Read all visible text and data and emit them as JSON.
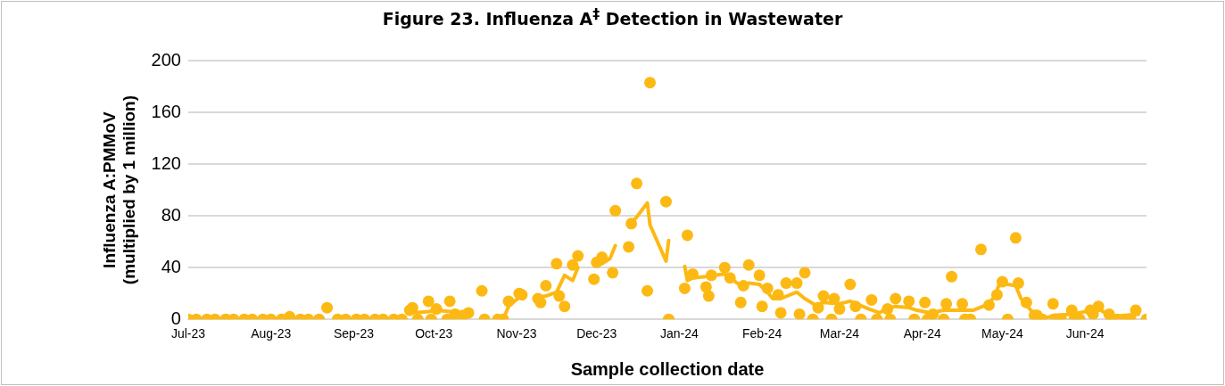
{
  "chart_data": {
    "type": "scatter",
    "title": "Figure 23. Influenza A$^{‡}$ Detection in Wastewater",
    "xlabel": "Sample collection date",
    "ylabel": "Influenza A:PMMoV\n(multiplied by 1 million)",
    "xlim": [
      "2023-07-01",
      "2024-06-24"
    ],
    "xticks": [
      {
        "value": "2023-07-01",
        "label": "Jul-23"
      },
      {
        "value": "2023-08-01",
        "label": "Aug-23"
      },
      {
        "value": "2023-09-01",
        "label": "Sep-23"
      },
      {
        "value": "2023-10-01",
        "label": "Oct-23"
      },
      {
        "value": "2023-11-01",
        "label": "Nov-23"
      },
      {
        "value": "2023-12-01",
        "label": "Dec-23"
      },
      {
        "value": "2024-01-01",
        "label": "Jan-24"
      },
      {
        "value": "2024-02-01",
        "label": "Feb-24"
      },
      {
        "value": "2024-03-01",
        "label": "Mar-24"
      },
      {
        "value": "2024-04-01",
        "label": "Apr-24"
      },
      {
        "value": "2024-05-01",
        "label": "May-24"
      },
      {
        "value": "2024-06-01",
        "label": "Jun-24"
      }
    ],
    "ylim": [
      0,
      200
    ],
    "yticks": [
      0,
      40,
      80,
      120,
      160,
      200
    ],
    "grid": "y",
    "legend": false,
    "series": [
      {
        "marker": "circle",
        "color": "#fdb913",
        "x": [
          "2023-07-01",
          "2023-07-04",
          "2023-07-08",
          "2023-07-11",
          "2023-07-15",
          "2023-07-18",
          "2023-07-22",
          "2023-07-25",
          "2023-07-29",
          "2023-08-01",
          "2023-08-05",
          "2023-08-08",
          "2023-08-12",
          "2023-08-15",
          "2023-08-19",
          "2023-08-22",
          "2023-08-26",
          "2023-08-29",
          "2023-09-02",
          "2023-09-05",
          "2023-09-09",
          "2023-09-12",
          "2023-09-16",
          "2023-09-19",
          "2023-09-22",
          "2023-09-23",
          "2023-09-25",
          "2023-09-29",
          "2023-09-30",
          "2023-10-02",
          "2023-10-06",
          "2023-10-07",
          "2023-10-09",
          "2023-10-12",
          "2023-10-14",
          "2023-10-19",
          "2023-10-20",
          "2023-10-25",
          "2023-10-27",
          "2023-10-29",
          "2023-11-02",
          "2023-11-03",
          "2023-11-09",
          "2023-11-10",
          "2023-11-12",
          "2023-11-16",
          "2023-11-17",
          "2023-11-19",
          "2023-11-22",
          "2023-11-24",
          "2023-11-30",
          "2023-12-01",
          "2023-12-03",
          "2023-12-07",
          "2023-12-08",
          "2023-12-13",
          "2023-12-14",
          "2023-12-16",
          "2023-12-20",
          "2023-12-21",
          "2023-12-27",
          "2023-12-28",
          "2024-01-03",
          "2024-01-04",
          "2024-01-06",
          "2024-01-11",
          "2024-01-12",
          "2024-01-13",
          "2024-01-18",
          "2024-01-20",
          "2024-01-24",
          "2024-01-25",
          "2024-01-27",
          "2024-01-31",
          "2024-02-01",
          "2024-02-03",
          "2024-02-07",
          "2024-02-08",
          "2024-02-10",
          "2024-02-14",
          "2024-02-15",
          "2024-02-17",
          "2024-02-20",
          "2024-02-22",
          "2024-02-24",
          "2024-02-27",
          "2024-02-28",
          "2024-03-01",
          "2024-03-05",
          "2024-03-07",
          "2024-03-09",
          "2024-03-13",
          "2024-03-15",
          "2024-03-19",
          "2024-03-20",
          "2024-03-22",
          "2024-03-27",
          "2024-03-29",
          "2024-04-02",
          "2024-04-03",
          "2024-04-05",
          "2024-04-09",
          "2024-04-10",
          "2024-04-12",
          "2024-04-16",
          "2024-04-17",
          "2024-04-19",
          "2024-04-23",
          "2024-04-26",
          "2024-04-29",
          "2024-05-01",
          "2024-05-03",
          "2024-05-06",
          "2024-05-07",
          "2024-05-10",
          "2024-05-13",
          "2024-05-14",
          "2024-05-16",
          "2024-05-20",
          "2024-05-21",
          "2024-05-23",
          "2024-05-27",
          "2024-05-28",
          "2024-05-30",
          "2024-06-03",
          "2024-06-04",
          "2024-06-06",
          "2024-06-10",
          "2024-06-11",
          "2024-06-13",
          "2024-06-17",
          "2024-06-18",
          "2024-06-20",
          "2024-06-24"
        ],
        "values": [
          0,
          0,
          0,
          0,
          0,
          0,
          0,
          0,
          0,
          0,
          0,
          2,
          0,
          0,
          0,
          9,
          0,
          0,
          0,
          0,
          0,
          0,
          0,
          0,
          7,
          9,
          0,
          14,
          0,
          8,
          0,
          14,
          4,
          3,
          5,
          22,
          0,
          0,
          0,
          14,
          20,
          19,
          16,
          13,
          26,
          43,
          18,
          10,
          42,
          49,
          31,
          44,
          48,
          36,
          84,
          56,
          74,
          105,
          22,
          183,
          91,
          0,
          24,
          65,
          35,
          25,
          18,
          34,
          40,
          32,
          13,
          26,
          42,
          34,
          10,
          24,
          19,
          5,
          28,
          28,
          4,
          36,
          0,
          9,
          18,
          0,
          16,
          8,
          27,
          10,
          0,
          15,
          0,
          8,
          0,
          16,
          14,
          0,
          13,
          0,
          4,
          0,
          12,
          33,
          12,
          0,
          0,
          54,
          11,
          19,
          29,
          0,
          63,
          28,
          13,
          3,
          3,
          0,
          12,
          0,
          0,
          7,
          0,
          0,
          7,
          4,
          10,
          4,
          0,
          0,
          0,
          0,
          7,
          0
        ]
      },
      {
        "type": "line",
        "marker": "none",
        "line_style": "solid",
        "color": "#fdb913",
        "x": [
          "2023-09-23",
          "2023-09-29",
          "2023-10-02",
          "2023-10-07",
          "2023-10-12",
          "2023-10-14",
          "2023-10-19",
          "2023-10-27",
          "2023-10-29",
          "2023-11-02",
          "2023-11-03",
          "2023-11-06",
          "2023-11-09",
          "2023-11-12",
          "2023-11-16",
          "2023-11-19",
          "2023-11-22",
          "2023-11-24",
          "2023-11-27",
          "2023-11-30",
          "2023-12-03",
          "2023-12-06",
          "2023-12-08",
          "2023-12-10",
          "2023-12-13",
          "2023-12-16",
          "2023-12-20",
          "2023-12-21",
          "2023-12-27",
          "2023-12-28",
          "2023-12-31",
          "2024-01-03",
          "2024-01-04",
          "2024-01-06",
          "2024-01-11",
          "2024-01-13",
          "2024-01-18",
          "2024-01-20",
          "2024-01-24",
          "2024-01-27",
          "2024-01-31",
          "2024-02-03",
          "2024-02-05",
          "2024-02-08",
          "2024-02-14",
          "2024-02-17",
          "2024-02-21",
          "2024-02-24",
          "2024-03-01",
          "2024-03-05",
          "2024-03-12",
          "2024-03-16",
          "2024-03-19",
          "2024-03-22",
          "2024-03-27",
          "2024-03-30",
          "2024-04-04",
          "2024-04-09",
          "2024-04-15",
          "2024-04-20",
          "2024-04-25",
          "2024-04-28",
          "2024-04-30",
          "2024-05-06",
          "2024-05-08",
          "2024-05-10",
          "2024-05-13",
          "2024-05-16",
          "2024-05-20",
          "2024-05-27",
          "2024-06-04",
          "2024-06-06",
          "2024-06-11",
          "2024-06-21"
        ],
        "values": [
          5,
          6,
          7,
          6,
          4,
          3,
          null,
          0,
          10,
          17,
          18,
          null,
          17,
          18,
          21,
          34,
          30,
          40,
          null,
          42,
          43,
          47,
          57,
          null,
          73,
          79,
          90,
          73,
          45,
          61,
          null,
          41,
          30,
          32,
          33,
          34,
          35,
          32,
          26,
          28,
          27,
          21,
          16,
          16,
          21,
          16,
          11,
          13,
          12,
          14,
          8,
          5,
          9,
          10,
          9,
          7,
          5,
          7,
          7,
          7,
          11,
          17,
          28,
          26,
          16,
          11,
          4,
          0,
          3,
          4,
          7,
          8,
          2,
          4
        ]
      }
    ]
  }
}
